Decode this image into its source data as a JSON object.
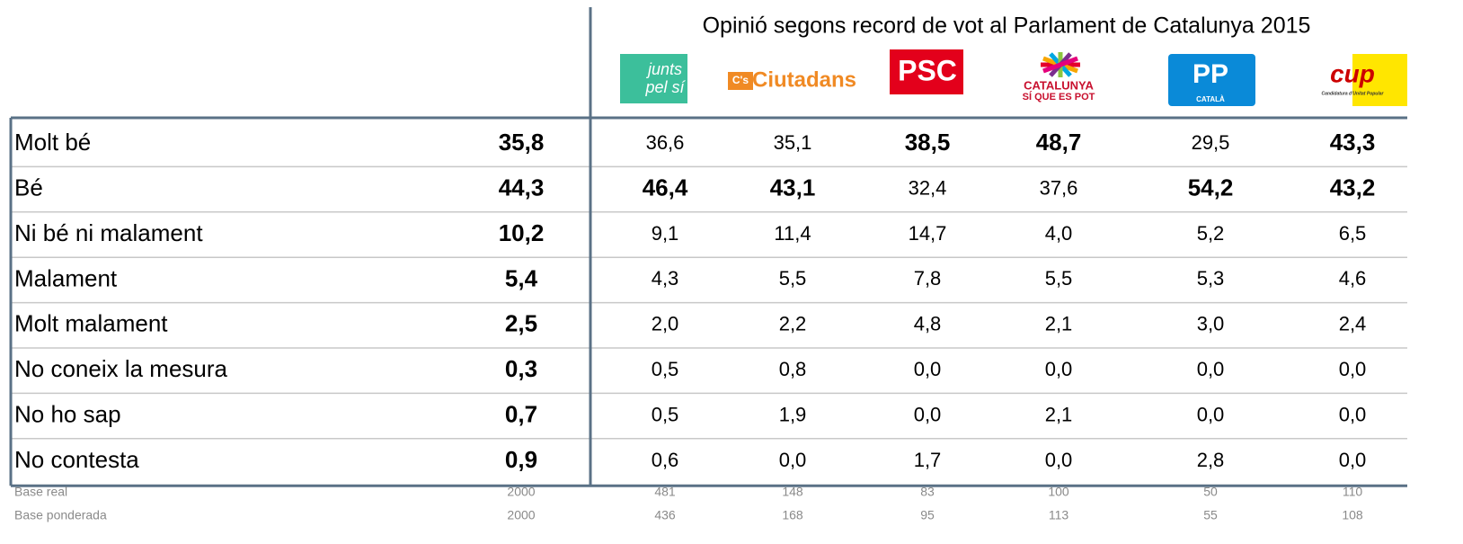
{
  "header": {
    "title": "Opinió segons record de vot al Parlament de Catalunya 2015",
    "parties": [
      {
        "lines": [
          "junts",
          "pel sí"
        ]
      },
      {
        "lines": [
          "C's",
          "Ciutadans"
        ]
      },
      {
        "lines": [
          "PSC"
        ]
      },
      {
        "lines": [
          "CATALUNYA",
          "SÍ QUE ES POT"
        ]
      },
      {
        "lines": [
          "PP",
          "CATALÀ"
        ]
      },
      {
        "lines": [
          "cup",
          "Candidatura d'Unitat Popular"
        ]
      }
    ]
  },
  "table": {
    "rows": [
      {
        "label": "Molt bé",
        "values": [
          "35,8",
          "36,6",
          "35,1",
          "38,5",
          "48,7",
          "29,5",
          "43,3"
        ],
        "bold": [
          true,
          false,
          false,
          true,
          true,
          false,
          true
        ]
      },
      {
        "label": "Bé",
        "values": [
          "44,3",
          "46,4",
          "43,1",
          "32,4",
          "37,6",
          "54,2",
          "43,2"
        ],
        "bold": [
          true,
          true,
          true,
          false,
          false,
          true,
          true
        ]
      },
      {
        "label": "Ni bé ni malament",
        "values": [
          "10,2",
          "9,1",
          "11,4",
          "14,7",
          "4,0",
          "5,2",
          "6,5"
        ],
        "bold": [
          true,
          false,
          false,
          false,
          false,
          false,
          false
        ]
      },
      {
        "label": "Malament",
        "values": [
          "5,4",
          "4,3",
          "5,5",
          "7,8",
          "5,5",
          "5,3",
          "4,6"
        ],
        "bold": [
          true,
          false,
          false,
          false,
          false,
          false,
          false
        ]
      },
      {
        "label": "Molt malament",
        "values": [
          "2,5",
          "2,0",
          "2,2",
          "4,8",
          "2,1",
          "3,0",
          "2,4"
        ],
        "bold": [
          true,
          false,
          false,
          false,
          false,
          false,
          false
        ]
      },
      {
        "label": "No coneix la mesura",
        "values": [
          "0,3",
          "0,5",
          "0,8",
          "0,0",
          "0,0",
          "0,0",
          "0,0"
        ],
        "bold": [
          true,
          false,
          false,
          false,
          false,
          false,
          false
        ]
      },
      {
        "label": "No ho sap",
        "values": [
          "0,7",
          "0,5",
          "1,9",
          "0,0",
          "2,1",
          "0,0",
          "0,0"
        ],
        "bold": [
          true,
          false,
          false,
          false,
          false,
          false,
          false
        ]
      },
      {
        "label": "No contesta",
        "values": [
          "0,9",
          "0,6",
          "0,0",
          "1,7",
          "0,0",
          "2,8",
          "0,0"
        ],
        "bold": [
          true,
          false,
          false,
          false,
          false,
          false,
          false
        ]
      }
    ]
  },
  "footer": {
    "rows": [
      {
        "label": "Base real",
        "values": [
          "2000",
          "481",
          "148",
          "83",
          "100",
          "50",
          "110"
        ]
      },
      {
        "label": "Base ponderada",
        "values": [
          "2000",
          "436",
          "168",
          "95",
          "113",
          "55",
          "108"
        ]
      }
    ]
  }
}
